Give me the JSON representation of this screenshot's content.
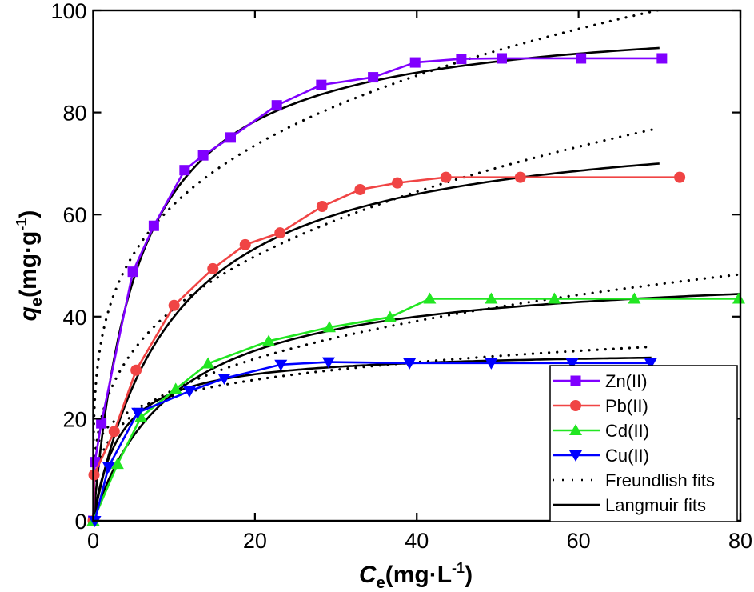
{
  "chart_data": {
    "type": "line",
    "xlabel": {
      "main": "C",
      "sub": "e",
      "unit_pre": "(mg·L",
      "sup": "-1",
      "unit_post": ")"
    },
    "ylabel": {
      "main": "q",
      "sub": "e",
      "unit_pre": "(mg·g",
      "sup": "-1",
      "unit_post": ")"
    },
    "xlim": [
      0,
      80
    ],
    "ylim": [
      0,
      100
    ],
    "xticks": [
      0,
      20,
      40,
      60,
      80
    ],
    "yticks": [
      0,
      20,
      40,
      60,
      80,
      100
    ],
    "grid": false,
    "legend_position": "bottom-right",
    "series": [
      {
        "name": "Zn(II)",
        "color": "#8000ff",
        "marker": "square",
        "x": [
          0,
          0.2,
          1.0,
          4.9,
          7.5,
          11.3,
          13.6,
          17.0,
          22.7,
          28.2,
          34.6,
          39.8,
          45.5,
          50.5,
          60.3,
          70.3
        ],
        "y": [
          0,
          11.5,
          19.1,
          48.8,
          57.8,
          68.7,
          71.6,
          75.1,
          81.4,
          85.4,
          86.9,
          89.8,
          90.5,
          90.6,
          90.6,
          90.6
        ]
      },
      {
        "name": "Pb(II)",
        "color": "#f04444",
        "marker": "circle",
        "x": [
          0,
          0.1,
          2.6,
          5.3,
          10.0,
          14.8,
          18.8,
          23.1,
          28.3,
          33.0,
          37.6,
          43.6,
          52.8,
          72.5
        ],
        "y": [
          0,
          9.0,
          17.5,
          29.5,
          42.2,
          49.4,
          54.1,
          56.4,
          61.6,
          64.9,
          66.2,
          67.3,
          67.3,
          67.3
        ]
      },
      {
        "name": "Cd(II)",
        "color": "#22e622",
        "marker": "triangle-up",
        "x": [
          0,
          3.0,
          5.9,
          10.2,
          14.2,
          21.7,
          29.2,
          36.7,
          41.6,
          49.2,
          57.0,
          66.9,
          79.8
        ],
        "y": [
          0,
          11.1,
          20.3,
          25.8,
          30.8,
          35.2,
          37.9,
          39.9,
          43.5,
          43.5,
          43.5,
          43.5,
          43.5
        ]
      },
      {
        "name": "Cu(II)",
        "color": "#0000ff",
        "marker": "triangle-down",
        "x": [
          0.2,
          1.9,
          5.5,
          11.9,
          16.2,
          23.2,
          29.1,
          39.1,
          49.2,
          59.2,
          68.9
        ],
        "y": [
          0,
          10.6,
          21.2,
          25.4,
          27.9,
          30.6,
          31.1,
          30.9,
          30.9,
          30.9,
          30.9
        ]
      }
    ],
    "fits": {
      "freundlich": {
        "name": "Freundlish fits",
        "style": "dotted",
        "color": "#000000",
        "curves": [
          {
            "for": "Zn(II)",
            "Kf": 35.2,
            "n_inv": 0.246,
            "xmax": 70
          },
          {
            "for": "Pb(II)",
            "Kf": 20.1,
            "n_inv": 0.316,
            "xmax": 70
          },
          {
            "for": "Cd(II)",
            "Kf": 12.8,
            "n_inv": 0.303,
            "xmax": 80
          },
          {
            "for": "Cu(II)",
            "Kf": 16.6,
            "n_inv": 0.17,
            "xmax": 69
          }
        ]
      },
      "langmuir": {
        "name": "Langmuir fits",
        "style": "solid",
        "color": "#000000",
        "curves": [
          {
            "for": "Zn(II)",
            "qm": 100,
            "K": 0.18,
            "xmax": 70
          },
          {
            "for": "Pb(II)",
            "qm": 80,
            "K": 0.1,
            "xmax": 70
          },
          {
            "for": "Cd(II)",
            "qm": 50,
            "K": 0.1,
            "xmax": 80
          },
          {
            "for": "Cu(II)",
            "qm": 33.5,
            "K": 0.3,
            "xmax": 69
          }
        ]
      }
    }
  }
}
